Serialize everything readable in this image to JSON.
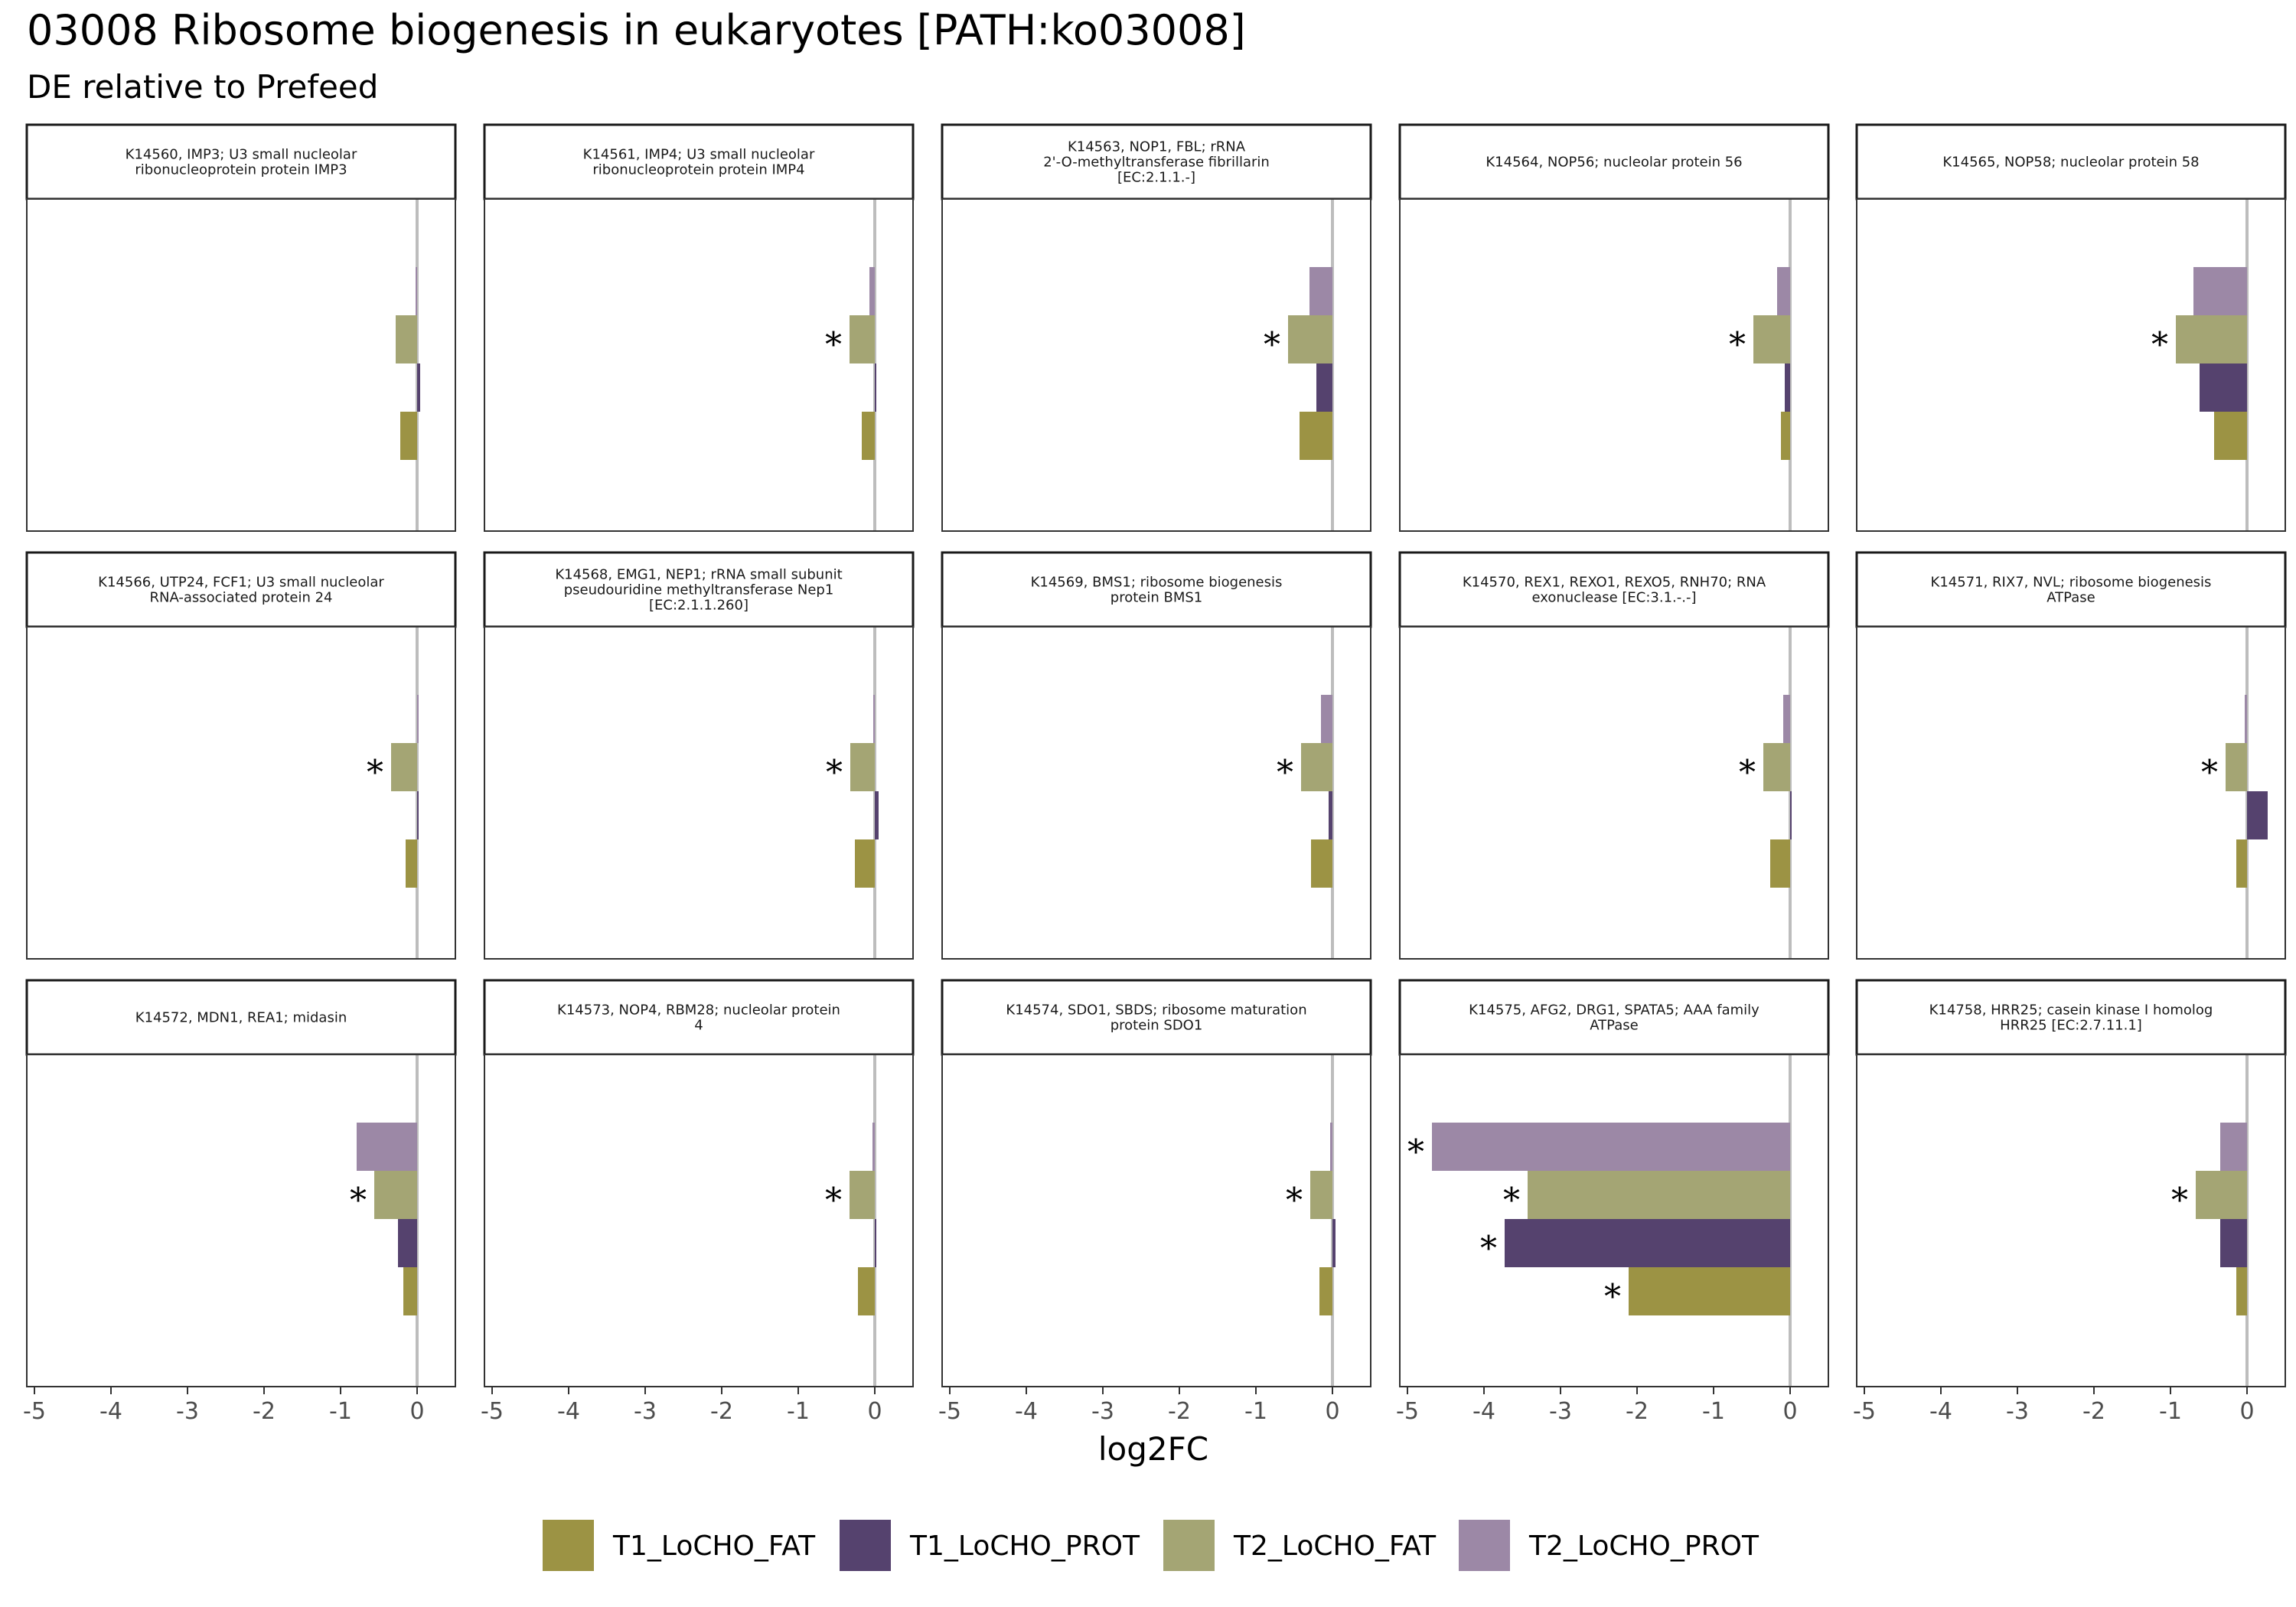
{
  "chart_data": {
    "type": "bar",
    "orientation": "horizontal",
    "title": "03008 Ribosome biogenesis in eukaryotes [PATH:ko03008]",
    "subtitle": "DE relative to Prefeed",
    "xlabel": "log2FC",
    "xlim": [
      -5.1,
      0.5
    ],
    "x_ticks": [
      -5,
      -4,
      -3,
      -2,
      -1,
      0
    ],
    "x_tick_labels": [
      "-5",
      "-4",
      "-3",
      "-2",
      "-1",
      "0"
    ],
    "grid": false,
    "legend_position": "bottom",
    "series": [
      {
        "name": "T1_LoCHO_FAT",
        "color": "#9C9344"
      },
      {
        "name": "T1_LoCHO_PROT",
        "color": "#55426E"
      },
      {
        "name": "T2_LoCHO_FAT",
        "color": "#A4A574"
      },
      {
        "name": "T2_LoCHO_PROT",
        "color": "#9C88A6"
      }
    ],
    "significance_marker": "*",
    "panels": [
      {
        "label_lines": [
          "K14560, IMP3; U3 small nucleolar",
          "ribonucleoprotein protein IMP3"
        ],
        "values": {
          "T2_LoCHO_PROT": -0.02,
          "T2_LoCHO_FAT": -0.28,
          "T1_LoCHO_PROT": 0.04,
          "T1_LoCHO_FAT": -0.22
        },
        "significant": []
      },
      {
        "label_lines": [
          "K14561, IMP4; U3 small nucleolar",
          "ribonucleoprotein protein IMP4"
        ],
        "values": {
          "T2_LoCHO_PROT": -0.07,
          "T2_LoCHO_FAT": -0.33,
          "T1_LoCHO_PROT": 0.0,
          "T1_LoCHO_FAT": -0.17
        },
        "significant": [
          "T2_LoCHO_FAT"
        ]
      },
      {
        "label_lines": [
          "K14563, NOP1, FBL; rRNA",
          "2'-O-methyltransferase fibrillarin",
          "[EC:2.1.1.-]"
        ],
        "values": {
          "T2_LoCHO_PROT": -0.3,
          "T2_LoCHO_FAT": -0.58,
          "T1_LoCHO_PROT": -0.21,
          "T1_LoCHO_FAT": -0.43
        },
        "significant": [
          "T2_LoCHO_FAT"
        ]
      },
      {
        "label_lines": [
          "K14564, NOP56; nucleolar protein 56"
        ],
        "values": {
          "T2_LoCHO_PROT": -0.17,
          "T2_LoCHO_FAT": -0.48,
          "T1_LoCHO_PROT": -0.07,
          "T1_LoCHO_FAT": -0.12
        },
        "significant": [
          "T2_LoCHO_FAT"
        ]
      },
      {
        "label_lines": [
          "K14565, NOP58; nucleolar protein 58"
        ],
        "values": {
          "T2_LoCHO_PROT": -0.7,
          "T2_LoCHO_FAT": -0.93,
          "T1_LoCHO_PROT": -0.62,
          "T1_LoCHO_FAT": -0.43
        },
        "significant": [
          "T2_LoCHO_FAT"
        ]
      },
      {
        "label_lines": [
          "K14566, UTP24, FCF1; U3 small nucleolar",
          "RNA-associated protein 24"
        ],
        "values": {
          "T2_LoCHO_PROT": 0.0,
          "T2_LoCHO_FAT": -0.34,
          "T1_LoCHO_PROT": 0.0,
          "T1_LoCHO_FAT": -0.15
        },
        "significant": [
          "T2_LoCHO_FAT"
        ]
      },
      {
        "label_lines": [
          "K14568, EMG1, NEP1; rRNA small subunit",
          "pseudouridine methyltransferase Nep1",
          "[EC:2.1.1.260]"
        ],
        "values": {
          "T2_LoCHO_PROT": -0.02,
          "T2_LoCHO_FAT": -0.32,
          "T1_LoCHO_PROT": 0.05,
          "T1_LoCHO_FAT": -0.26
        },
        "significant": [
          "T2_LoCHO_FAT"
        ]
      },
      {
        "label_lines": [
          "K14569, BMS1; ribosome biogenesis",
          "protein BMS1"
        ],
        "values": {
          "T2_LoCHO_PROT": -0.15,
          "T2_LoCHO_FAT": -0.41,
          "T1_LoCHO_PROT": -0.05,
          "T1_LoCHO_FAT": -0.28
        },
        "significant": [
          "T2_LoCHO_FAT"
        ]
      },
      {
        "label_lines": [
          "K14570, REX1, REXO1, REXO5, RNH70; RNA",
          "exonuclease [EC:3.1.-.-]"
        ],
        "values": {
          "T2_LoCHO_PROT": -0.09,
          "T2_LoCHO_FAT": -0.35,
          "T1_LoCHO_PROT": 0.0,
          "T1_LoCHO_FAT": -0.26
        },
        "significant": [
          "T2_LoCHO_FAT"
        ]
      },
      {
        "label_lines": [
          "K14571, RIX7, NVL; ribosome biogenesis",
          "ATPase"
        ],
        "values": {
          "T2_LoCHO_PROT": -0.03,
          "T2_LoCHO_FAT": -0.28,
          "T1_LoCHO_PROT": 0.27,
          "T1_LoCHO_FAT": -0.14
        },
        "significant": [
          "T2_LoCHO_FAT"
        ]
      },
      {
        "label_lines": [
          "K14572, MDN1, REA1; midasin"
        ],
        "values": {
          "T2_LoCHO_PROT": -0.79,
          "T2_LoCHO_FAT": -0.56,
          "T1_LoCHO_PROT": -0.25,
          "T1_LoCHO_FAT": -0.18
        },
        "significant": [
          "T2_LoCHO_FAT"
        ]
      },
      {
        "label_lines": [
          "K14573, NOP4, RBM28; nucleolar protein",
          "4"
        ],
        "values": {
          "T2_LoCHO_PROT": -0.03,
          "T2_LoCHO_FAT": -0.33,
          "T1_LoCHO_PROT": 0.02,
          "T1_LoCHO_FAT": -0.22
        },
        "significant": [
          "T2_LoCHO_FAT"
        ]
      },
      {
        "label_lines": [
          "K14574, SDO1, SBDS; ribosome maturation",
          "protein SDO1"
        ],
        "values": {
          "T2_LoCHO_PROT": -0.03,
          "T2_LoCHO_FAT": -0.29,
          "T1_LoCHO_PROT": 0.04,
          "T1_LoCHO_FAT": -0.17
        },
        "significant": [
          "T2_LoCHO_FAT"
        ]
      },
      {
        "label_lines": [
          "K14575, AFG2, DRG1, SPATA5; AAA family",
          "ATPase"
        ],
        "values": {
          "T2_LoCHO_PROT": -4.68,
          "T2_LoCHO_FAT": -3.43,
          "T1_LoCHO_PROT": -3.73,
          "T1_LoCHO_FAT": -2.11
        },
        "significant": [
          "T2_LoCHO_PROT",
          "T2_LoCHO_FAT",
          "T1_LoCHO_PROT",
          "T1_LoCHO_FAT"
        ]
      },
      {
        "label_lines": [
          "K14758, HRR25; casein kinase I homolog",
          "HRR25 [EC:2.7.11.1]"
        ],
        "values": {
          "T2_LoCHO_PROT": -0.35,
          "T2_LoCHO_FAT": -0.67,
          "T1_LoCHO_PROT": -0.35,
          "T1_LoCHO_FAT": -0.14
        },
        "significant": [
          "T2_LoCHO_FAT"
        ]
      }
    ]
  }
}
